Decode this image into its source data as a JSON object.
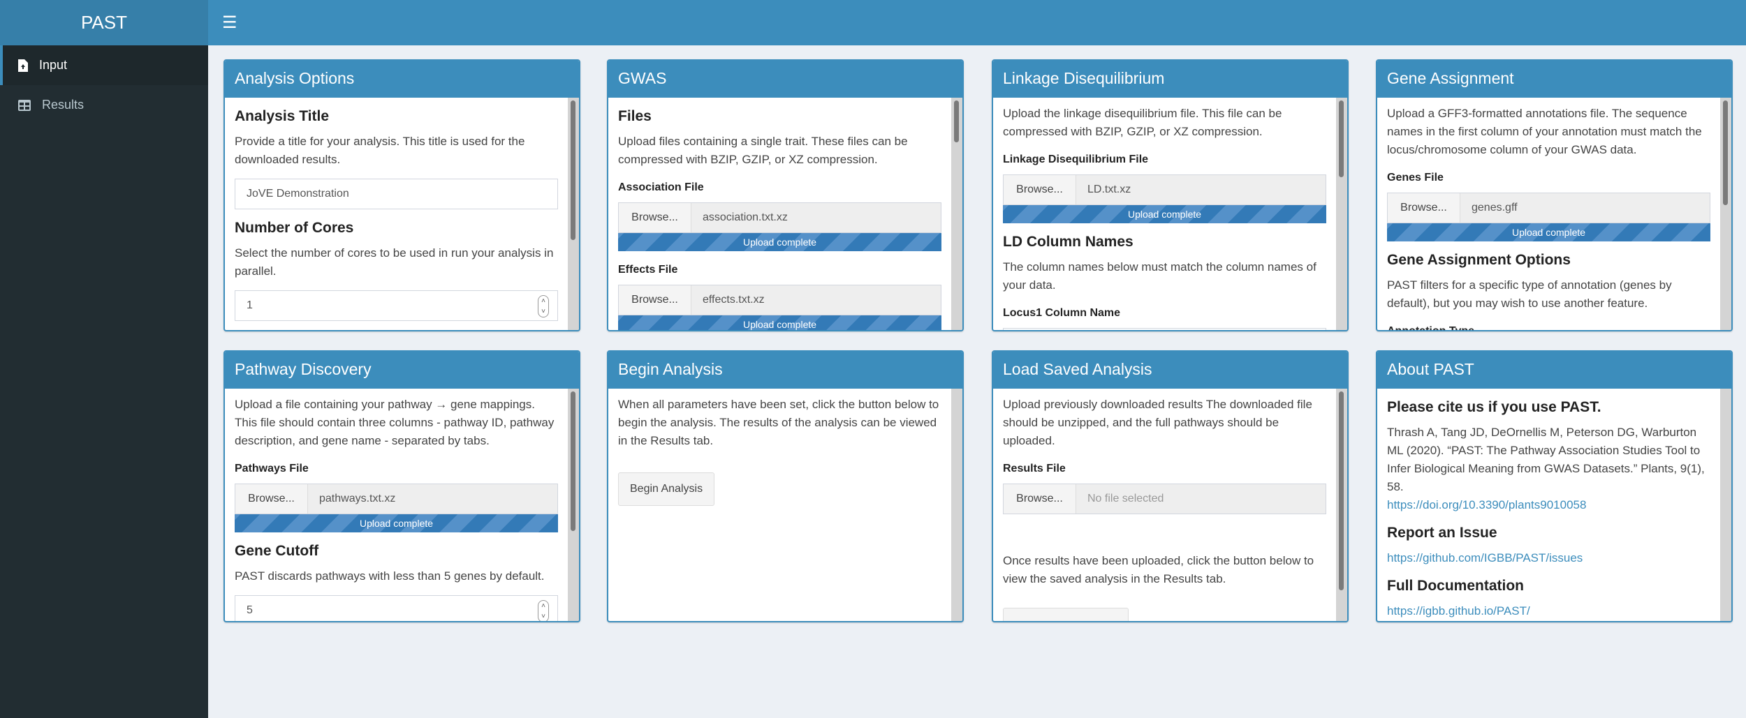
{
  "app": {
    "title": "PAST"
  },
  "sidebar": {
    "items": [
      {
        "label": "Input",
        "icon": "file-upload-icon"
      },
      {
        "label": "Results",
        "icon": "table-icon"
      }
    ]
  },
  "analysis": {
    "header": "Analysis Options",
    "title_h": "Analysis Title",
    "title_desc": "Provide a title for your analysis. This title is used for the downloaded results.",
    "title_value": "JoVE Demonstration",
    "cores_h": "Number of Cores",
    "cores_desc": "Select the number of cores to be used in run your analysis in parallel.",
    "cores_value": "1"
  },
  "gwas": {
    "header": "GWAS",
    "files_h": "Files",
    "desc": "Upload files containing a single trait. These files can be compressed with BZIP, GZIP, or XZ compression.",
    "assoc_label": "Association File",
    "assoc_file": "association.txt.xz",
    "effects_label": "Effects File",
    "effects_file": "effects.txt.xz",
    "browse": "Browse...",
    "upload_status": "Upload complete"
  },
  "ld": {
    "header": "Linkage Disequilibrium",
    "desc": "Upload the linkage disequilibrium file. This file can be compressed with BZIP, GZIP, or XZ compression.",
    "file_label": "Linkage Disequilibrium File",
    "file": "LD.txt.xz",
    "browse": "Browse...",
    "upload_status": "Upload complete",
    "cols_h": "LD Column Names",
    "cols_desc": "The column names below must match the column names of your data.",
    "locus1_label": "Locus1 Column Name"
  },
  "gene": {
    "header": "Gene Assignment",
    "desc": "Upload a GFF3-formatted annotations file. The sequence names in the first column of your annotation must match the locus/chromosome column of your GWAS data.",
    "file_label": "Genes File",
    "file": "genes.gff",
    "browse": "Browse...",
    "upload_status": "Upload complete",
    "opts_h": "Gene Assignment Options",
    "opts_desc": "PAST filters for a specific type of annotation (genes by default), but you may wish to use another feature.",
    "type_label": "Annotation Type"
  },
  "pathway": {
    "header": "Pathway Discovery",
    "desc": "Upload a file containing your pathway → gene mappings. This file should contain three columns - pathway ID, pathway description, and gene name - separated by tabs.",
    "file_label": "Pathways File",
    "file": "pathways.txt.xz",
    "browse": "Browse...",
    "upload_status": "Upload complete",
    "cutoff_h": "Gene Cutoff",
    "cutoff_desc": "PAST discards pathways with less than 5 genes by default.",
    "cutoff_value": "5"
  },
  "begin": {
    "header": "Begin Analysis",
    "desc": "When all parameters have been set, click the button below to begin the analysis. The results of the analysis can be viewed in the Results tab.",
    "button": "Begin Analysis"
  },
  "load": {
    "header": "Load Saved Analysis",
    "desc": "Upload previously downloaded results The downloaded file should be unzipped, and the full pathways should be uploaded.",
    "file_label": "Results File",
    "browse": "Browse...",
    "file_placeholder": "No file selected",
    "desc2": "Once results have been uploaded, click the button below to view the saved analysis in the Results tab."
  },
  "about": {
    "header": "About PAST",
    "cite_h": "Please cite us if you use PAST.",
    "citation": "Thrash A, Tang JD, DeOrnellis M, Peterson DG, Warburton ML (2020). “PAST: The Pathway Association Studies Tool to Infer Biological Meaning from GWAS Datasets.” Plants, 9(1), 58.",
    "doi": "https://doi.org/10.3390/plants9010058",
    "issue_h": "Report an Issue",
    "issue_link": "https://github.com/IGBB/PAST/issues",
    "docs_h": "Full Documentation",
    "docs_link": "https://igbb.github.io/PAST/"
  },
  "colors": {
    "primary": "#3c8dbc",
    "sidebar": "#222d32",
    "link": "#3c8dbc"
  }
}
